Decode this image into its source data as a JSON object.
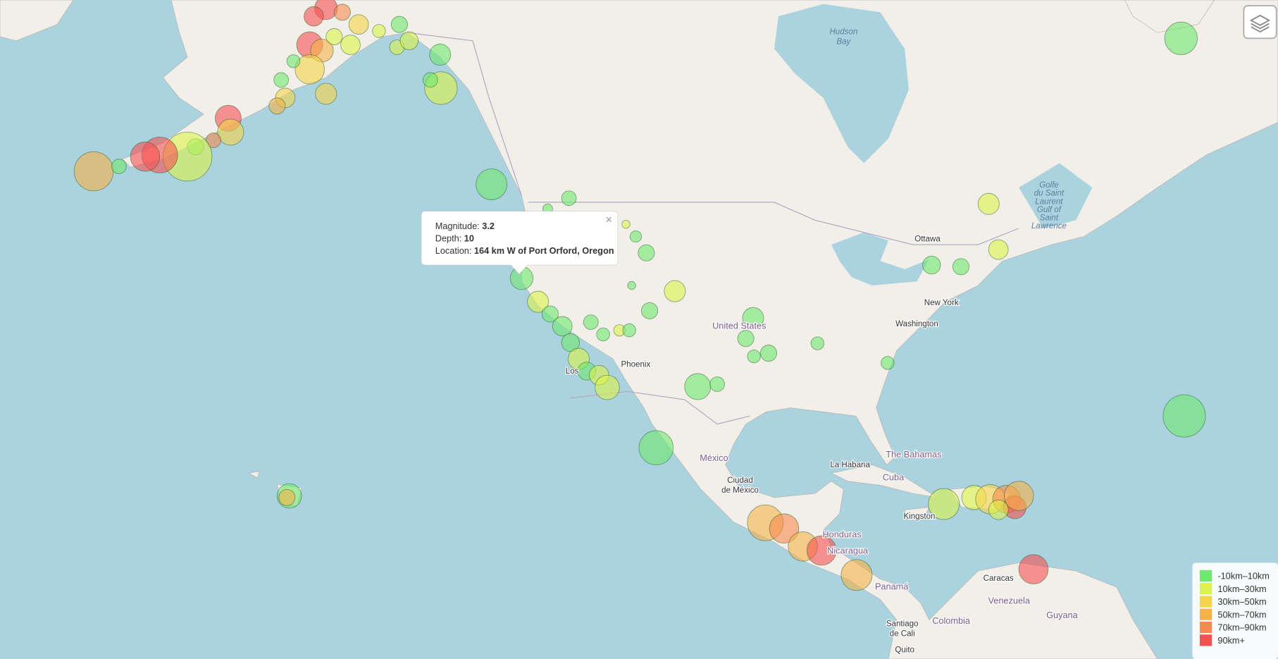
{
  "popup": {
    "close": "×",
    "magnitude_label": "Magnitude:",
    "magnitude": 3.2,
    "depth_label": "Depth:",
    "depth": 10,
    "location_label": "Location:",
    "location": "164 km W of Port Orford, Oregon"
  },
  "legend": {
    "items": [
      {
        "label": "-10km–10km",
        "color": "#6ee86e"
      },
      {
        "label": "10km–30km",
        "color": "#dcf34a"
      },
      {
        "label": "30km–50km",
        "color": "#f5d44a"
      },
      {
        "label": "50km–70km",
        "color": "#f5b247"
      },
      {
        "label": "70km–90km",
        "color": "#f58a4f"
      },
      {
        "label": "90km+",
        "color": "#f55050"
      }
    ]
  },
  "map_labels": {
    "water": [
      "Hudson",
      "Bay",
      "Golfe",
      "du Saint",
      "Laurent",
      "Gulf of",
      "Saint",
      "Lawrence"
    ],
    "places": [
      "Ottawa",
      "New York",
      "Washington",
      "Phoenix",
      "La Habana",
      "Kingston",
      "Caracas",
      "Ciudad",
      "de México",
      "Santiago",
      "de Cali",
      "Quito",
      "Los"
    ],
    "countries": [
      "United States",
      "México",
      "The Bahamas",
      "Cuba",
      "Honduras",
      "Nicaragua",
      "Panamá",
      "Venezuela",
      "Guyana",
      "Colombia"
    ]
  }
}
